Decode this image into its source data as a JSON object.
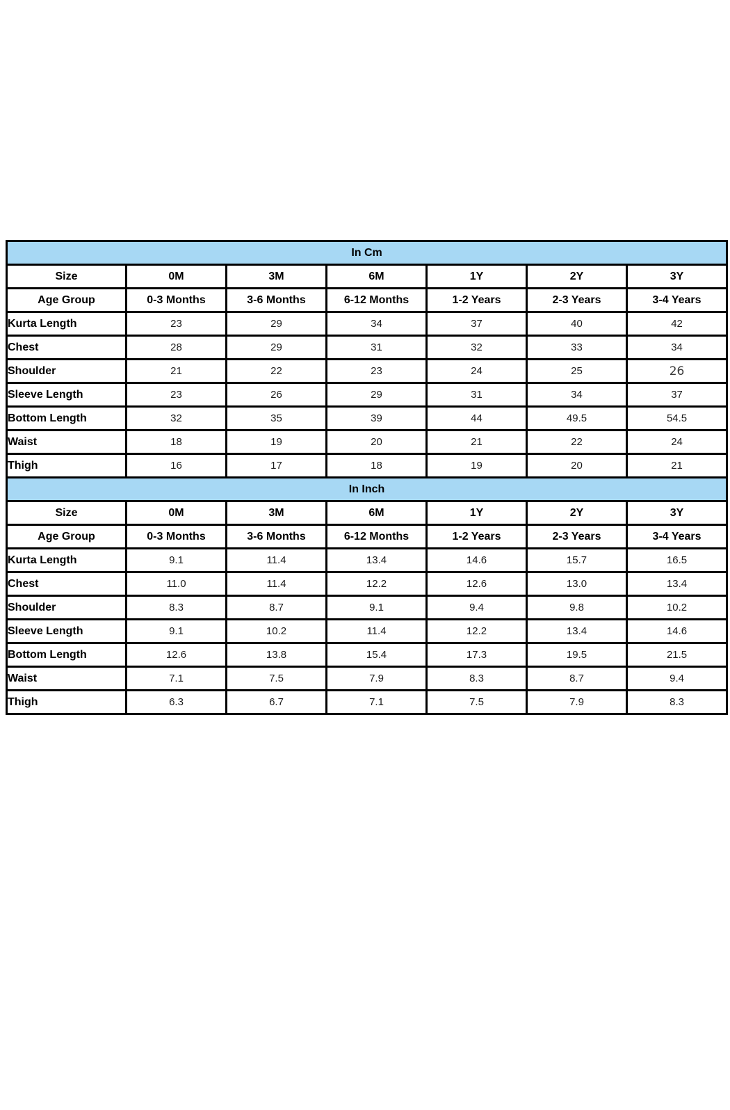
{
  "page": {
    "background": "#ffffff"
  },
  "special_cell": {
    "table_index": 0,
    "body_row_index": 2,
    "value_index": 5
  },
  "tables": [
    {
      "title": "In Cm",
      "title_bg": "#a7d8f4",
      "header_rows": [
        {
          "label": "Size",
          "values": [
            "0M",
            "3M",
            "6M",
            "1Y",
            "2Y",
            "3Y"
          ]
        },
        {
          "label": "Age Group",
          "values": [
            "0-3 Months",
            "3-6 Months",
            "6-12 Months",
            "1-2 Years",
            "2-3 Years",
            "3-4 Years"
          ]
        }
      ],
      "body_rows": [
        {
          "label": "Kurta Length",
          "values": [
            "23",
            "29",
            "34",
            "37",
            "40",
            "42"
          ]
        },
        {
          "label": "Chest",
          "values": [
            "28",
            "29",
            "31",
            "32",
            "33",
            "34"
          ]
        },
        {
          "label": "Shoulder",
          "values": [
            "21",
            "22",
            "23",
            "24",
            "25",
            "26"
          ]
        },
        {
          "label": "Sleeve Length",
          "values": [
            "23",
            "26",
            "29",
            "31",
            "34",
            "37"
          ]
        },
        {
          "label": "Bottom Length",
          "values": [
            "32",
            "35",
            "39",
            "44",
            "49.5",
            "54.5"
          ]
        },
        {
          "label": "Waist",
          "values": [
            "18",
            "19",
            "20",
            "21",
            "22",
            "24"
          ]
        },
        {
          "label": "Thigh",
          "values": [
            "16",
            "17",
            "18",
            "19",
            "20",
            "21"
          ]
        }
      ]
    },
    {
      "title": "In Inch",
      "title_bg": "#a7d8f4",
      "header_rows": [
        {
          "label": "Size",
          "values": [
            "0M",
            "3M",
            "6M",
            "1Y",
            "2Y",
            "3Y"
          ]
        },
        {
          "label": "Age Group",
          "values": [
            "0-3 Months",
            "3-6 Months",
            "6-12 Months",
            "1-2 Years",
            "2-3 Years",
            "3-4 Years"
          ]
        }
      ],
      "body_rows": [
        {
          "label": "Kurta Length",
          "values": [
            "9.1",
            "11.4",
            "13.4",
            "14.6",
            "15.7",
            "16.5"
          ]
        },
        {
          "label": "Chest",
          "values": [
            "11.0",
            "11.4",
            "12.2",
            "12.6",
            "13.0",
            "13.4"
          ]
        },
        {
          "label": "Shoulder",
          "values": [
            "8.3",
            "8.7",
            "9.1",
            "9.4",
            "9.8",
            "10.2"
          ]
        },
        {
          "label": "Sleeve Length",
          "values": [
            "9.1",
            "10.2",
            "11.4",
            "12.2",
            "13.4",
            "14.6"
          ]
        },
        {
          "label": "Bottom Length",
          "values": [
            "12.6",
            "13.8",
            "15.4",
            "17.3",
            "19.5",
            "21.5"
          ]
        },
        {
          "label": "Waist",
          "values": [
            "7.1",
            "7.5",
            "7.9",
            "8.3",
            "8.7",
            "9.4"
          ]
        },
        {
          "label": "Thigh",
          "values": [
            "6.3",
            "6.7",
            "7.1",
            "7.5",
            "7.9",
            "8.3"
          ]
        }
      ]
    }
  ]
}
